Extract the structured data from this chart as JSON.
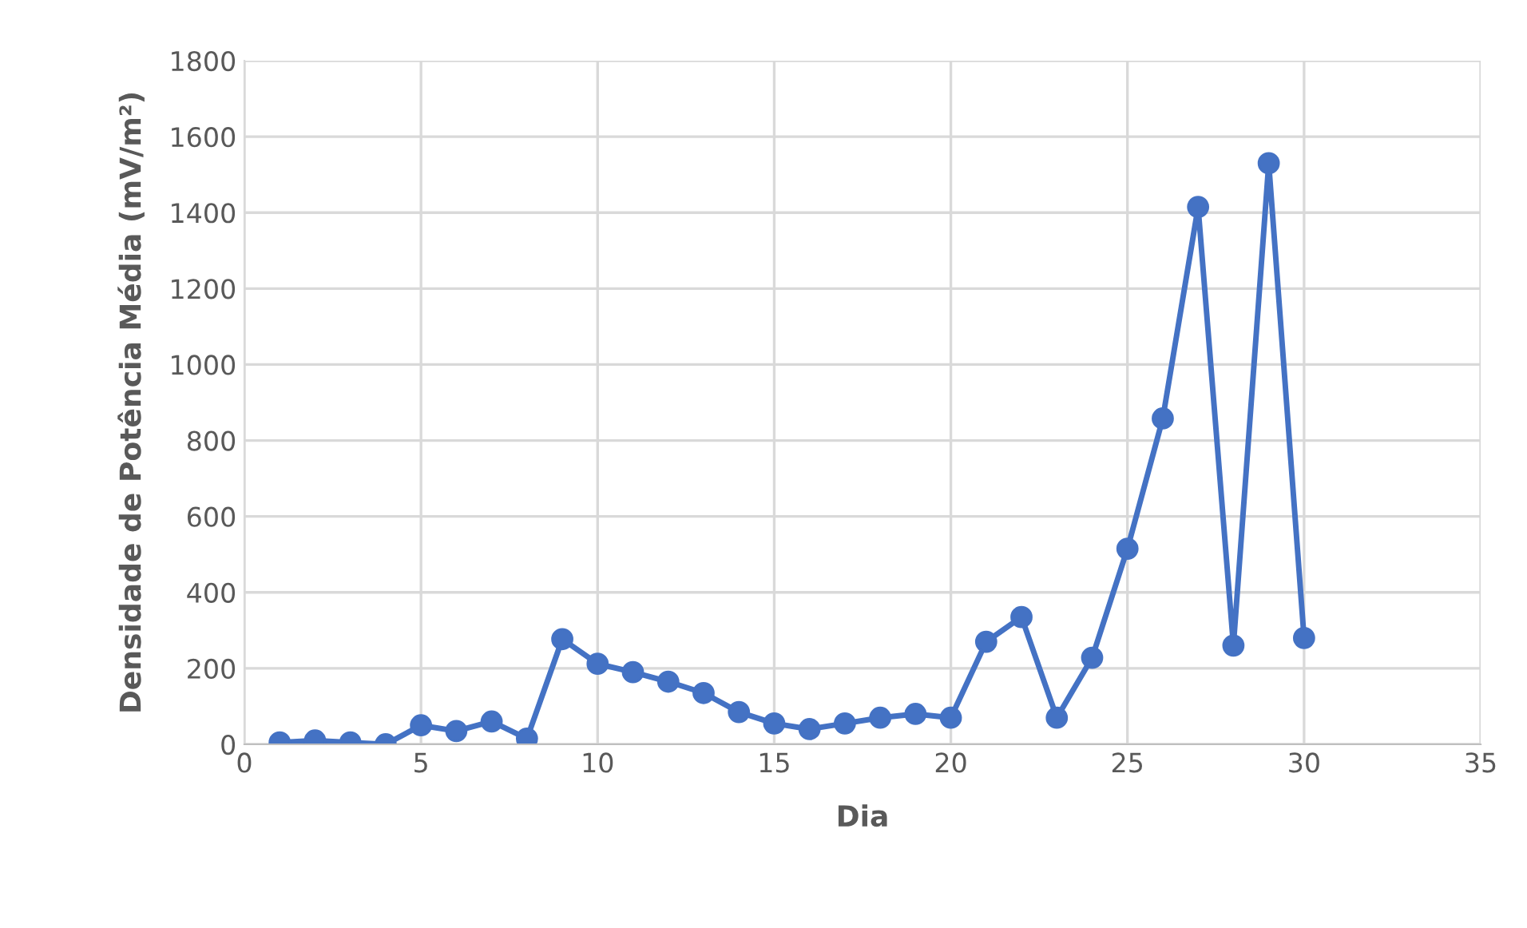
{
  "chart_data": {
    "type": "line",
    "xlabel": "Dia",
    "ylabel": "Densidade de Potência Média (mV/m²)",
    "x": [
      1,
      2,
      3,
      4,
      5,
      6,
      7,
      8,
      9,
      10,
      11,
      12,
      13,
      14,
      15,
      16,
      17,
      18,
      19,
      20,
      21,
      22,
      23,
      24,
      25,
      26,
      27,
      28,
      29,
      30
    ],
    "series": [
      {
        "color": "#4472c4",
        "values": [
          5,
          10,
          5,
          0,
          50,
          35,
          60,
          15,
          277,
          212,
          190,
          165,
          135,
          85,
          55,
          40,
          55,
          70,
          80,
          70,
          270,
          335,
          70,
          228,
          515,
          858,
          1415,
          260,
          1530,
          280
        ]
      }
    ],
    "xlim": [
      0,
      35
    ],
    "xticks": [
      0,
      5,
      10,
      15,
      20,
      25,
      30,
      35
    ],
    "ylim": [
      0,
      1800
    ],
    "yticks": [
      0,
      200,
      400,
      600,
      800,
      1000,
      1200,
      1400,
      1600,
      1800
    ],
    "grid": true,
    "marker": "circle",
    "line_style": "solid"
  }
}
